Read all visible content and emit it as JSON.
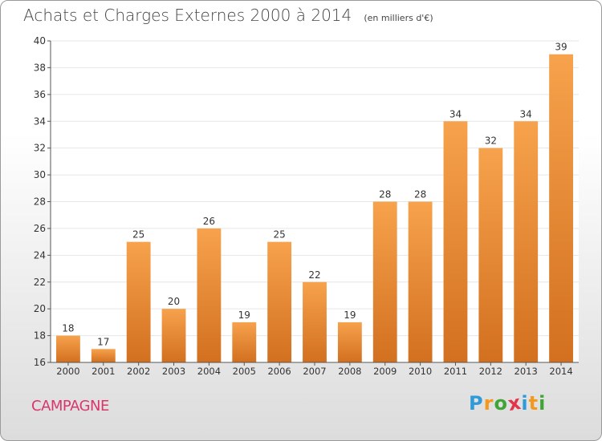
{
  "title": "Achats et Charges Externes 2000 à 2014",
  "unit": "(en milliers d'€)",
  "commune": "CAMPAGNE",
  "logo": {
    "text": "Proxiti",
    "letters": [
      {
        "ch": "P",
        "color": "#2f9ad8"
      },
      {
        "ch": "r",
        "color": "#f39a1e"
      },
      {
        "ch": "o",
        "color": "#3fa535"
      },
      {
        "ch": "x",
        "color": "#e2344b"
      },
      {
        "ch": "i",
        "color": "#2f9ad8"
      },
      {
        "ch": "t",
        "color": "#f39a1e"
      },
      {
        "ch": "i",
        "color": "#3fa535"
      }
    ]
  },
  "colors": {
    "bar_top": "#f7a24c",
    "bar_bottom": "#d2701f",
    "axis": "#555555",
    "grid": "#e6e6e6"
  },
  "chart_data": {
    "type": "bar",
    "categories": [
      "2000",
      "2001",
      "2002",
      "2003",
      "2004",
      "2005",
      "2006",
      "2007",
      "2008",
      "2009",
      "2010",
      "2011",
      "2012",
      "2013",
      "2014"
    ],
    "values": [
      18,
      17,
      25,
      20,
      26,
      19,
      25,
      22,
      19,
      28,
      28,
      34,
      32,
      34,
      39
    ],
    "ylim": [
      16,
      40
    ],
    "yticks": [
      16,
      18,
      20,
      22,
      24,
      26,
      28,
      30,
      32,
      34,
      36,
      38,
      40
    ],
    "grid": true,
    "legend": "none"
  }
}
